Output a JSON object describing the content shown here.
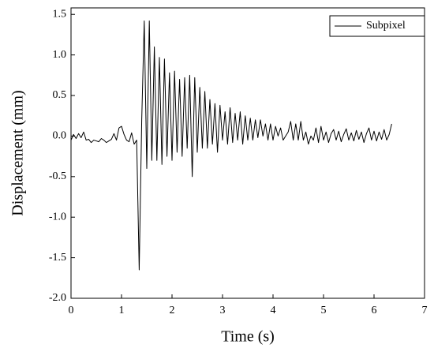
{
  "chart_data": {
    "type": "line",
    "xlabel": "Time (s)",
    "ylabel": "Displacement  (mm)",
    "xlim": [
      0,
      7
    ],
    "xticks": [
      0,
      1,
      2,
      3,
      4,
      5,
      6,
      7
    ],
    "ylim": [
      -2,
      1.58
    ],
    "yticks": [
      {
        "value": -2,
        "label": "-2.0"
      },
      -1.5,
      {
        "value": -1,
        "label": "-1.0"
      },
      -0.5,
      {
        "value": 0,
        "label": "0.0"
      },
      0.5,
      {
        "value": 1,
        "label": "1.0"
      },
      1.5
    ],
    "legend": "upper right",
    "x": [
      0,
      0.05,
      0.1,
      0.15,
      0.2,
      0.25,
      0.3,
      0.35,
      0.4,
      0.45,
      0.5,
      0.55,
      0.6,
      0.65,
      0.7,
      0.75,
      0.8,
      0.85,
      0.9,
      0.95,
      1,
      1.05,
      1.1,
      1.15,
      1.2,
      1.25,
      1.3,
      1.35,
      1.4,
      1.45,
      1.5,
      1.55,
      1.6,
      1.65,
      1.7,
      1.75,
      1.8,
      1.85,
      1.9,
      1.95,
      2,
      2.05,
      2.1,
      2.15,
      2.2,
      2.25,
      2.3,
      2.35,
      2.4,
      2.45,
      2.5,
      2.55,
      2.6,
      2.65,
      2.7,
      2.75,
      2.8,
      2.85,
      2.9,
      2.95,
      3,
      3.05,
      3.1,
      3.15,
      3.2,
      3.25,
      3.3,
      3.35,
      3.4,
      3.45,
      3.5,
      3.55,
      3.6,
      3.65,
      3.7,
      3.75,
      3.8,
      3.85,
      3.9,
      3.95,
      4,
      4.05,
      4.1,
      4.15,
      4.2,
      4.25,
      4.3,
      4.35,
      4.4,
      4.45,
      4.5,
      4.55,
      4.6,
      4.65,
      4.7,
      4.75,
      4.8,
      4.85,
      4.9,
      4.95,
      5,
      5.05,
      5.1,
      5.15,
      5.2,
      5.25,
      5.3,
      5.35,
      5.4,
      5.45,
      5.5,
      5.55,
      5.6,
      5.65,
      5.7,
      5.75,
      5.8,
      5.85,
      5.9,
      5.95,
      6,
      6.05,
      6.1,
      6.15,
      6.2,
      6.25,
      6.3,
      6.35
    ],
    "series": [
      {
        "name": "Subpixel",
        "color": "#000000",
        "values": [
          -0.05,
          0.02,
          -0.03,
          0.03,
          -0.02,
          0.05,
          -0.05,
          -0.04,
          -0.08,
          -0.05,
          -0.06,
          -0.07,
          -0.03,
          -0.05,
          -0.08,
          -0.06,
          -0.04,
          0.03,
          -0.05,
          0.1,
          0.12,
          0.02,
          -0.05,
          -0.07,
          0.04,
          -0.1,
          -0.05,
          -1.65,
          0.2,
          1.42,
          -0.4,
          1.42,
          -0.3,
          1.1,
          -0.3,
          0.97,
          -0.35,
          0.95,
          -0.25,
          0.78,
          -0.3,
          0.8,
          -0.2,
          0.7,
          -0.25,
          0.72,
          -0.15,
          0.75,
          -0.5,
          0.72,
          -0.2,
          0.6,
          -0.15,
          0.55,
          -0.15,
          0.45,
          -0.1,
          0.4,
          -0.2,
          0.38,
          -0.05,
          0.3,
          -0.1,
          0.35,
          -0.08,
          0.28,
          -0.05,
          0.3,
          -0.1,
          0.25,
          -0.05,
          0.22,
          -0.05,
          0.2,
          -0.02,
          0.2,
          0,
          0.15,
          -0.05,
          0.15,
          -0.05,
          0.12,
          0,
          0.1,
          -0.05,
          0,
          0.05,
          0.18,
          -0.05,
          0.15,
          -0.05,
          0.18,
          -0.05,
          0.05,
          -0.1,
          0,
          -0.05,
          0.1,
          -0.08,
          0.12,
          -0.05,
          0.05,
          -0.08,
          0.03,
          0.08,
          -0.05,
          0.06,
          -0.07,
          0.02,
          0.09,
          -0.05,
          0.04,
          -0.06,
          0.07,
          -0.04,
          0.05,
          -0.08,
          0.03,
          0.1,
          -0.05,
          0.06,
          -0.06,
          0.05,
          -0.04,
          0.08,
          -0.05,
          0.02,
          0.15
        ]
      }
    ]
  }
}
